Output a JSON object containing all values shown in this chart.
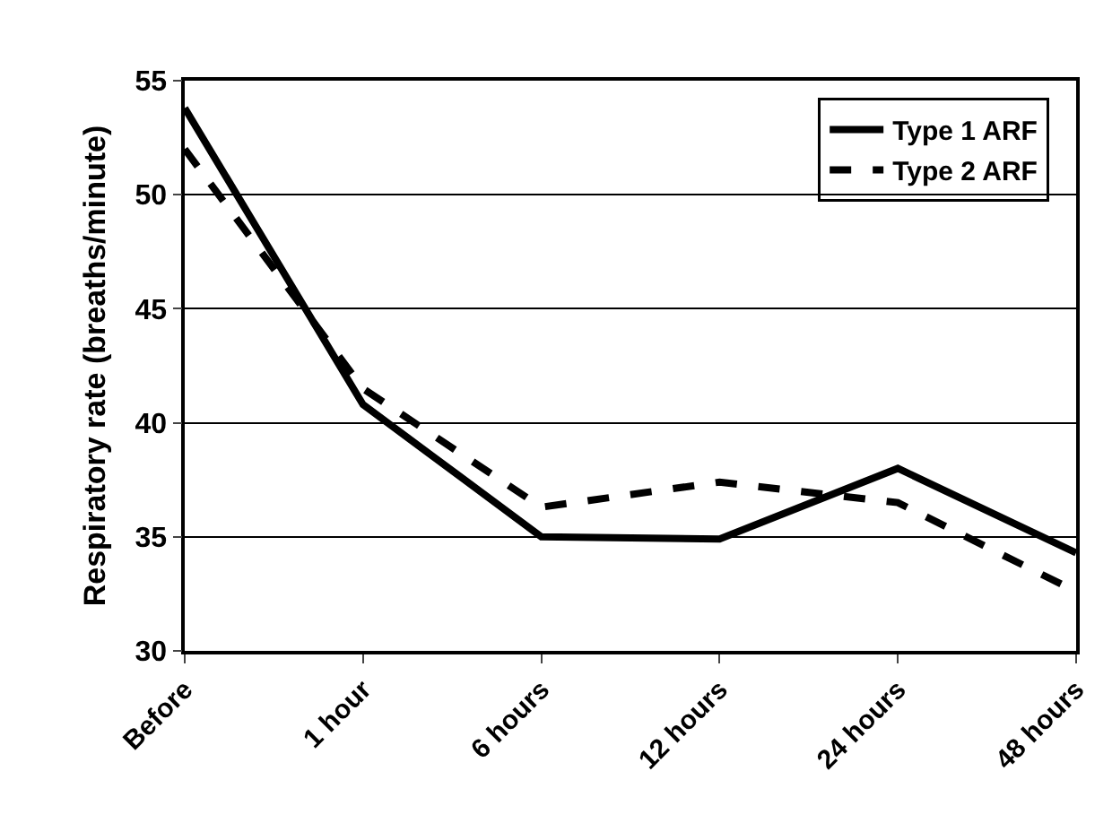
{
  "chart_data": {
    "type": "line",
    "ylabel": "Respiratory rate (breaths/minute)",
    "categories": [
      "Before",
      "1 hour",
      "6 hours",
      "12 hours",
      "24 hours",
      "48 hours"
    ],
    "series": [
      {
        "name": "Type 1 ARF",
        "color": "#000000",
        "line_style": "solid",
        "values": [
          53.8,
          40.8,
          35,
          34.9,
          38,
          34.3
        ]
      },
      {
        "name": "Type 2 ARF",
        "color": "#000000",
        "line_style": "dashed",
        "values": [
          52,
          41.5,
          36.3,
          37.4,
          36.5,
          32.6
        ]
      }
    ],
    "ylim": [
      30,
      55
    ],
    "yticks": [
      30,
      35,
      40,
      45,
      50,
      55
    ],
    "grid": "y",
    "legend": "top right",
    "marker": "none"
  }
}
